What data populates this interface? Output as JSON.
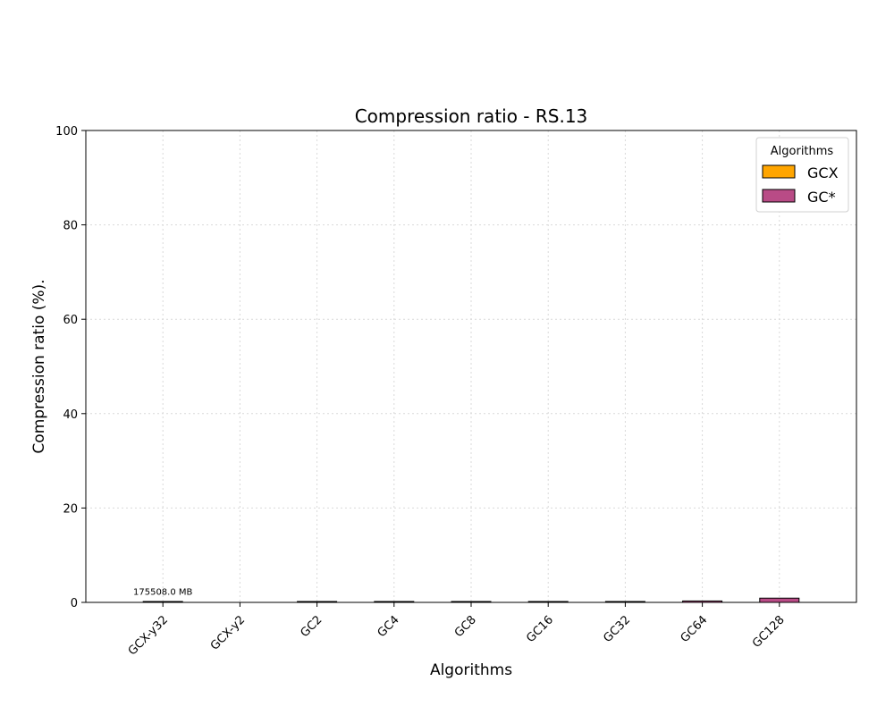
{
  "chart_data": {
    "type": "bar",
    "title": "Compression ratio -  RS.13",
    "xlabel": "Algorithms",
    "ylabel": "Compression ratio (%).",
    "ylim": [
      0,
      100
    ],
    "yticks": [
      0,
      20,
      40,
      60,
      80,
      100
    ],
    "grid": true,
    "categories": [
      "GCX-y32",
      "GCX-y2",
      "GC2",
      "GC4",
      "GC8",
      "GC16",
      "GC32",
      "GC64",
      "GC128"
    ],
    "values": [
      0.1,
      0.0,
      0.1,
      0.1,
      0.1,
      0.1,
      0.1,
      0.3,
      0.9
    ],
    "groups": [
      "GCX",
      "GCX",
      "GC*",
      "GC*",
      "GC*",
      "GC*",
      "GC*",
      "GC*",
      "GC*"
    ],
    "data_labels": [
      "175508.0 MB",
      "",
      "",
      "",
      "",
      "",
      "",
      "",
      ""
    ],
    "legend": {
      "title": "Algorithms",
      "position": "top-right",
      "entries": [
        {
          "name": "GCX",
          "color": "#ffa500"
        },
        {
          "name": "GC*",
          "color": "#b94b86"
        }
      ]
    }
  }
}
